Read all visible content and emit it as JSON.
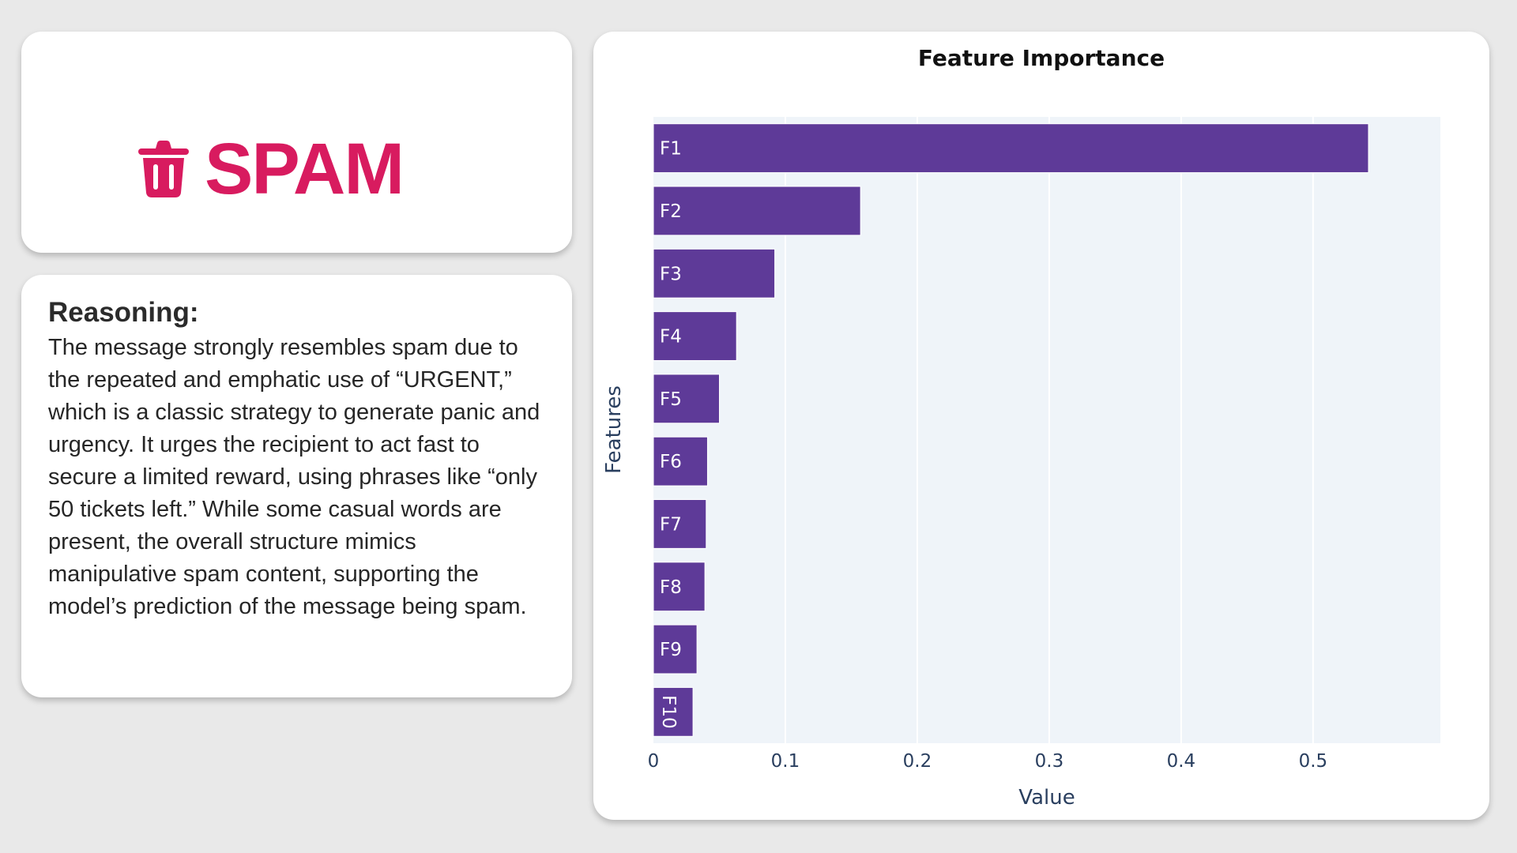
{
  "verdict": {
    "label": "SPAM",
    "icon": "trash-icon",
    "color": "#d81b5f"
  },
  "reasoning": {
    "title": "Reasoning:",
    "text": "The message strongly resembles spam due to the repeated and emphatic use of “URGENT,” which is a classic strategy to generate panic and urgency. It urges the recipient to act fast to secure a limited reward, using phrases like “only 50 tickets left.” While some casual words are present, the overall structure mimics manipulative spam content, supporting the model’s prediction of the message being spam."
  },
  "chart_data": {
    "type": "bar",
    "orientation": "horizontal",
    "title": "Feature Importance",
    "xlabel": "Value",
    "ylabel": "Features",
    "categories": [
      "F1",
      "F2",
      "F3",
      "F4",
      "F5",
      "F6",
      "F7",
      "F8",
      "F9",
      "F10"
    ],
    "values": [
      0.542,
      0.157,
      0.092,
      0.063,
      0.05,
      0.041,
      0.04,
      0.039,
      0.033,
      0.03
    ],
    "xlim": [
      0,
      0.5965
    ],
    "xticks": [
      0,
      0.1,
      0.2,
      0.3,
      0.4,
      0.5
    ],
    "grid": true,
    "bar_color": "#5e3a98",
    "plot_bg": "#eff4f9"
  }
}
